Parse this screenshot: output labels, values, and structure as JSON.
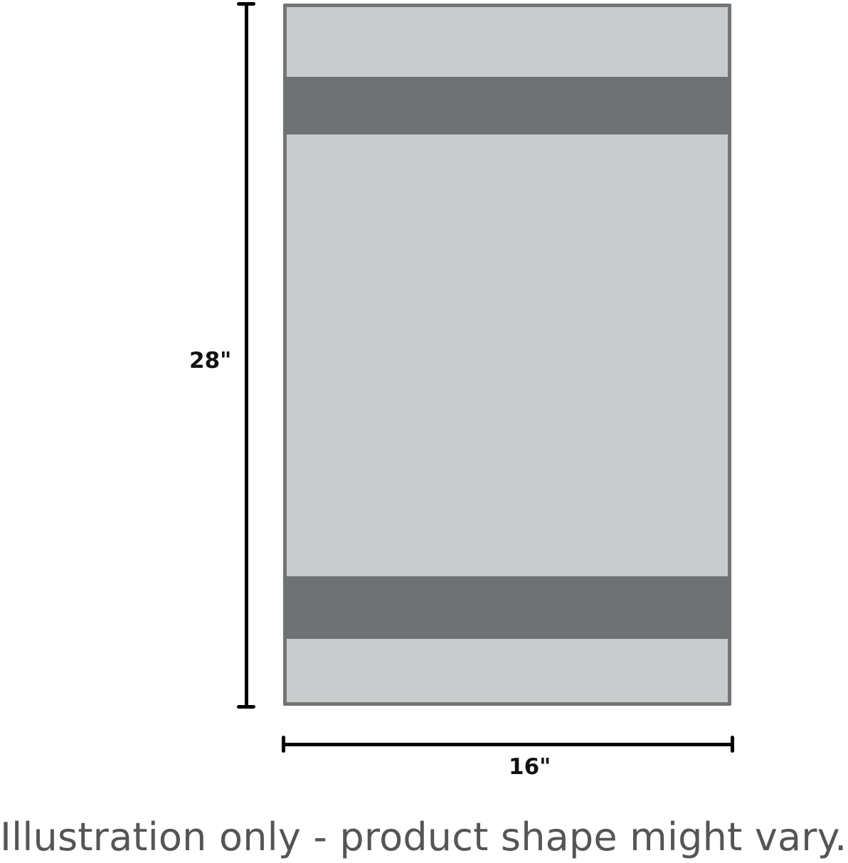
{
  "diagram": {
    "height_label": "28\"",
    "width_label": "16\"",
    "caption": "Illustration only - product shape might vary.",
    "colors": {
      "towel_body": "#c9cccc",
      "towel_border": "#737575",
      "stripe": "#6f7272",
      "dimension_line": "#000000",
      "caption_text": "#555555"
    }
  }
}
